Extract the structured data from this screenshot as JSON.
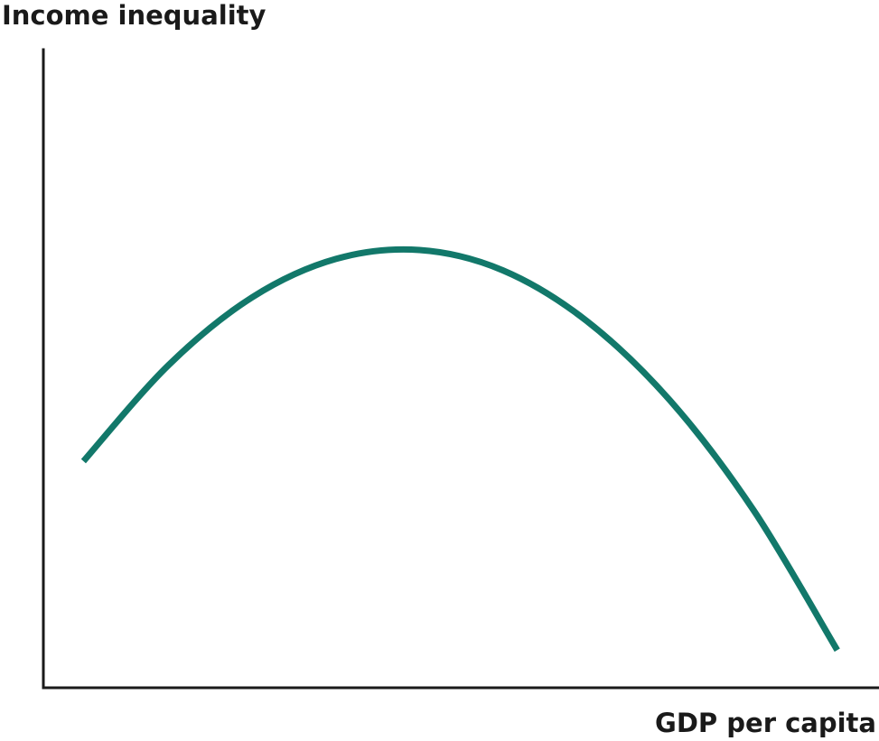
{
  "chart_data": {
    "type": "line",
    "title": "",
    "xlabel": "GDP per capita",
    "ylabel": "Income inequality",
    "xlim": [
      0,
      100
    ],
    "ylim": [
      0,
      100
    ],
    "grid": false,
    "legend": "none",
    "series": [
      {
        "color": "#12786a",
        "x": [
          4.8,
          15,
          25,
          35,
          45,
          55,
          65,
          75,
          85,
          95
        ],
        "y": [
          35.5,
          50.6,
          61.2,
          67.2,
          68.6,
          65.4,
          57.5,
          45,
          27.8,
          5.9
        ]
      }
    ]
  },
  "colors": {
    "axis": "#1a1a1a",
    "curve": "#12786a"
  }
}
